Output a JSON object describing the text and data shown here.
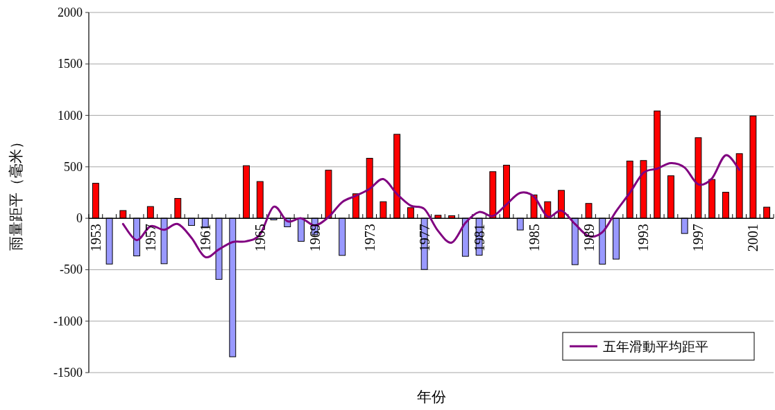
{
  "chart_data": {
    "type": "bar",
    "xlabel": "年份",
    "ylabel": "雨量距平（毫米）",
    "categories": [
      "1953",
      null,
      null,
      null,
      "1957",
      null,
      null,
      null,
      "1961",
      null,
      null,
      null,
      "1965",
      null,
      null,
      null,
      "1969",
      null,
      null,
      null,
      "1973",
      null,
      null,
      null,
      "1977",
      null,
      null,
      null,
      "1981",
      null,
      null,
      null,
      "1985",
      null,
      null,
      null,
      "1989",
      null,
      null,
      null,
      "1993",
      null,
      null,
      null,
      "1997",
      null,
      null,
      null,
      "2001",
      null
    ],
    "series": [
      {
        "values": [
          340,
          -445,
          75,
          -366,
          114,
          -442,
          193,
          -70,
          -92,
          -594,
          -1346,
          511,
          357,
          -16,
          -83,
          -224,
          -160,
          467,
          -361,
          238,
          583,
          161,
          816,
          103,
          -498,
          29,
          25,
          -370,
          -359,
          453,
          516,
          -114,
          227,
          161,
          271,
          -451,
          144,
          -446,
          -397,
          556,
          561,
          1043,
          413,
          -148,
          783,
          377,
          253,
          628,
          994,
          108
        ],
        "colors": [
          "#ff0000",
          "#9999ff",
          "#ff0000",
          "#9999ff",
          "#ff0000",
          "#9999ff",
          "#ff0000",
          "#9999ff",
          "#9999ff",
          "#9999ff",
          "#9999ff",
          "#ff0000",
          "#ff0000",
          "#9999ff",
          "#9999ff",
          "#9999ff",
          "#9999ff",
          "#ff0000",
          "#9999ff",
          "#ff0000",
          "#ff0000",
          "#ff0000",
          "#ff0000",
          "#ff0000",
          "#9999ff",
          "#ff0000",
          "#ff0000",
          "#9999ff",
          "#9999ff",
          "#ff0000",
          "#ff0000",
          "#9999ff",
          "#ff0000",
          "#ff0000",
          "#ff0000",
          "#9999ff",
          "#ff0000",
          "#9999ff",
          "#9999ff",
          "#ff0000",
          "#ff0000",
          "#ff0000",
          "#ff0000",
          "#9999ff",
          "#ff0000",
          "#ff0000",
          "#ff0000",
          "#ff0000",
          "#ff0000",
          "#ff0000"
        ]
      },
      {
        "type": "line",
        "name": "五年滑動平均距平",
        "color": "#800080",
        "values": [
          null,
          null,
          -56,
          -213,
          -78,
          -112,
          -56,
          -191,
          -377,
          -303,
          -231,
          -224,
          -157,
          112,
          -29,
          0,
          -70,
          11,
          157,
          218,
          285,
          381,
          236,
          123,
          90,
          -123,
          -236,
          -45,
          61,
          22,
          135,
          247,
          210,
          16,
          74,
          -56,
          -173,
          -135,
          67,
          247,
          442,
          482,
          536,
          493,
          330,
          388,
          612,
          471,
          null,
          null
        ]
      }
    ],
    "ylim": [
      -1500,
      2000
    ],
    "yticks": [
      -1500,
      -1000,
      -500,
      0,
      500,
      1000,
      1500,
      2000
    ],
    "grid": "y",
    "legend": "bottom right"
  }
}
